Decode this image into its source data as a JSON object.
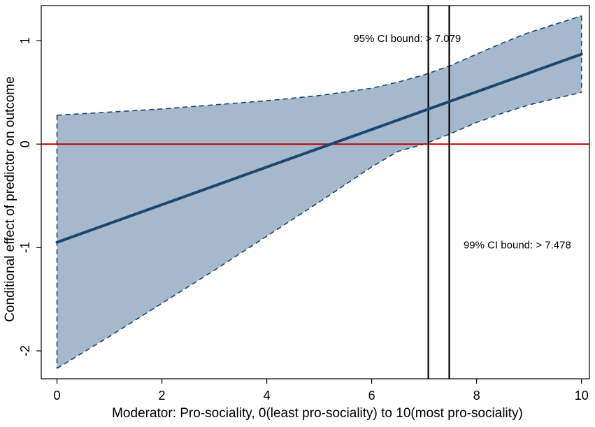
{
  "chart_data": {
    "type": "line",
    "xlabel": "Moderator: Pro-sociality, 0(least pro-sociality) to 10(most pro-sociality)",
    "ylabel": "Conditional effect of predictor on outcome",
    "xlim": [
      -0.3,
      10.15
    ],
    "ylim": [
      -2.27,
      1.34
    ],
    "xticks": [
      0,
      2,
      4,
      6,
      8,
      10
    ],
    "yticks": [
      -2,
      -1,
      0,
      1
    ],
    "grid": false,
    "estimate": {
      "x": [
        0,
        10
      ],
      "y": [
        -0.95,
        0.87
      ]
    },
    "ci_band": {
      "x": [
        0,
        1,
        2,
        3,
        4,
        5,
        6,
        6.5,
        7,
        7.5,
        8,
        8.5,
        9,
        9.5,
        10
      ],
      "upper": [
        0.28,
        0.31,
        0.34,
        0.38,
        0.42,
        0.47,
        0.54,
        0.6,
        0.67,
        0.76,
        0.87,
        0.98,
        1.08,
        1.16,
        1.24
      ],
      "lower": [
        -2.17,
        -1.86,
        -1.54,
        -1.22,
        -0.89,
        -0.56,
        -0.22,
        -0.07,
        0.0,
        0.1,
        0.21,
        0.3,
        0.38,
        0.44,
        0.5
      ]
    },
    "reference_line": {
      "y": 0,
      "color": "#c00000"
    },
    "vertical_lines": [
      7.079,
      7.478
    ],
    "annotations": [
      {
        "text": "95% CI bound: > 7.079",
        "x": 5.65,
        "y": 0.99
      },
      {
        "text": "99% CI bound: > 7.478",
        "x": 7.75,
        "y": -1.01
      }
    ],
    "colors": {
      "band": "#a6b8cb",
      "line": "#1a476f",
      "reference": "#c00000",
      "vlines": "#000000"
    }
  }
}
